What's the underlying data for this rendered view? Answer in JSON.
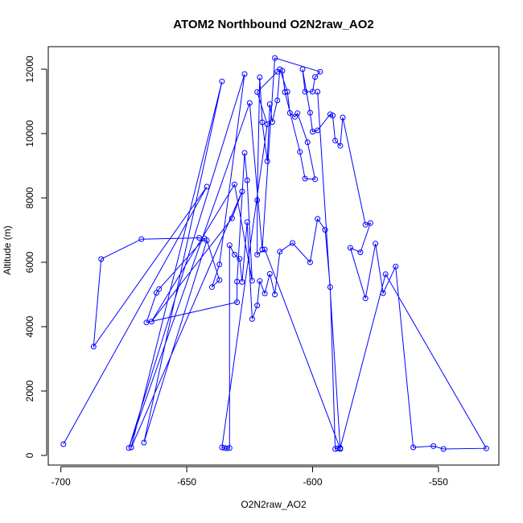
{
  "chart_data": {
    "type": "line",
    "title": "ATOM2 Northbound O2N2raw_AO2",
    "xlabel": "O2N2raw_AO2",
    "ylabel": "Altitude (m)",
    "xlim": [
      -705,
      -526
    ],
    "ylim": [
      -300,
      12700
    ],
    "xticks": [
      -700,
      -650,
      -600,
      -550
    ],
    "yticks": [
      0,
      2000,
      4000,
      6000,
      8000,
      10000,
      12000
    ],
    "xtick_labels": [
      "-700",
      "-650",
      "-600",
      "-550"
    ],
    "ytick_labels": [
      "0",
      "2000",
      "4000",
      "6000",
      "8000",
      "10000",
      "12000"
    ],
    "grid": false,
    "legend": "none",
    "series_color": "#0000ff",
    "marker": "open-circle",
    "series": [
      {
        "x": [
          -699,
          -642,
          -687,
          -684,
          -668,
          -645,
          -643,
          -661,
          -662,
          -666,
          -630,
          -630,
          -627,
          -626,
          -624,
          -631,
          -664,
          -632,
          -628,
          -672,
          -636,
          -667,
          -642,
          -637,
          -640,
          -637,
          -627,
          -673,
          -625,
          -620,
          -615,
          -597,
          -599,
          -600,
          -603,
          -604,
          -601,
          -600,
          -598,
          -593,
          -592,
          -591,
          -589,
          -588,
          -579,
          -577,
          -581,
          -585,
          -579,
          -575,
          -572,
          -567,
          -560,
          -552,
          -548,
          -531,
          -571,
          -589,
          -590,
          -591,
          -593,
          -595,
          -598,
          -601,
          -608,
          -613,
          -615,
          -617,
          -619,
          -621,
          -622,
          -624,
          -626,
          -628,
          -629,
          -631,
          -633,
          -633,
          -634,
          -635,
          -636,
          -618,
          -622,
          -614,
          -612,
          -611,
          -605,
          -603,
          -599,
          -602,
          -606,
          -607,
          -609,
          -610,
          -613,
          -614,
          -616,
          -617,
          -618,
          -620,
          -621,
          -622,
          -622,
          -619,
          -589,
          -598
        ],
        "y": [
          350,
          8350,
          3380,
          6100,
          6720,
          6760,
          6740,
          5170,
          5050,
          4130,
          4760,
          5400,
          9400,
          8550,
          5430,
          8420,
          4160,
          7370,
          8200,
          250,
          11620,
          400,
          6680,
          5450,
          5230,
          5930,
          11850,
          230,
          10950,
          6400,
          12350,
          11920,
          11760,
          11300,
          11300,
          12000,
          10650,
          10060,
          10100,
          10600,
          10560,
          9780,
          9620,
          10500,
          7170,
          7220,
          6310,
          6450,
          4880,
          6580,
          5040,
          5870,
          250,
          290,
          200,
          220,
          5630,
          230,
          220,
          200,
          5230,
          7010,
          7350,
          6000,
          6600,
          6330,
          5000,
          5640,
          5030,
          5420,
          4660,
          4240,
          7250,
          5390,
          6110,
          6240,
          6530,
          230,
          220,
          230,
          250,
          10290,
          11290,
          11920,
          11950,
          11290,
          9430,
          8600,
          8580,
          9730,
          10630,
          10520,
          10640,
          11300,
          12000,
          11030,
          10360,
          10910,
          9140,
          10350,
          11750,
          7930,
          6240,
          6400,
          200,
          11300
        ]
      }
    ]
  }
}
